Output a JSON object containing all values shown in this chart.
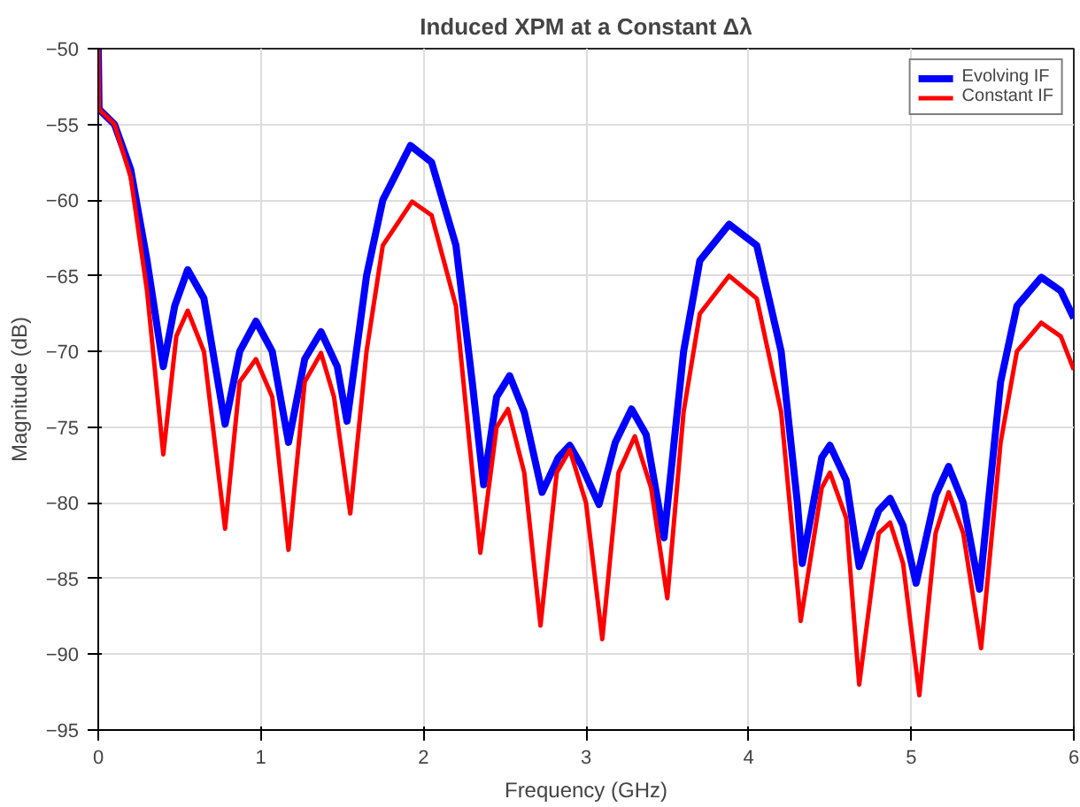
{
  "chart_data": {
    "type": "line",
    "title": "Induced XPM at a Constant Δλ",
    "xlabel": "Frequency (GHz)",
    "ylabel": "Magnitude (dB)",
    "xlim": [
      0,
      6
    ],
    "ylim": [
      -95,
      -50
    ],
    "xticks": [
      0,
      1,
      2,
      3,
      4,
      5,
      6
    ],
    "yticks": [
      -95,
      -90,
      -85,
      -80,
      -75,
      -70,
      -65,
      -60,
      -55,
      -50
    ],
    "grid": true,
    "legend": "top right",
    "line_style": "solid",
    "marker": "none",
    "series": [
      {
        "name": "Evolving IF",
        "color": "#0000ff",
        "x": [
          0,
          0.005,
          0.1,
          0.2,
          0.3,
          0.4,
          0.47,
          0.55,
          0.65,
          0.78,
          0.87,
          0.97,
          1.07,
          1.17,
          1.27,
          1.37,
          1.47,
          1.53,
          1.65,
          1.75,
          1.92,
          2.05,
          2.2,
          2.3,
          2.37,
          2.45,
          2.53,
          2.62,
          2.73,
          2.83,
          2.9,
          2.97,
          3.08,
          3.18,
          3.28,
          3.37,
          3.48,
          3.6,
          3.7,
          3.88,
          4.05,
          4.2,
          4.3,
          4.33,
          4.45,
          4.5,
          4.6,
          4.68,
          4.8,
          4.87,
          4.95,
          5.03,
          5.15,
          5.23,
          5.32,
          5.42,
          5.55,
          5.65,
          5.8,
          5.92,
          6
        ],
        "values": [
          -50,
          -54,
          -55,
          -58,
          -64,
          -71,
          -67,
          -64.6,
          -66.5,
          -74.8,
          -70,
          -68,
          -70,
          -76,
          -70.5,
          -68.7,
          -71,
          -74.6,
          -65,
          -60,
          -56.4,
          -57.5,
          -63,
          -72,
          -78.8,
          -73,
          -71.6,
          -74,
          -79.3,
          -77,
          -76.2,
          -77.5,
          -80.1,
          -76,
          -73.8,
          -75.5,
          -82.3,
          -70,
          -64,
          -61.6,
          -63,
          -70,
          -80,
          -84,
          -77,
          -76.2,
          -78.5,
          -84.2,
          -80.5,
          -79.7,
          -81.5,
          -85.3,
          -79.5,
          -77.6,
          -80,
          -85.7,
          -72,
          -67,
          -65.1,
          -66,
          -67.8
        ]
      },
      {
        "name": "Constant IF",
        "color": "#ff0000",
        "x": [
          0,
          0.005,
          0.1,
          0.2,
          0.3,
          0.4,
          0.48,
          0.55,
          0.65,
          0.78,
          0.87,
          0.97,
          1.07,
          1.17,
          1.27,
          1.37,
          1.45,
          1.55,
          1.65,
          1.75,
          1.93,
          2.05,
          2.2,
          2.35,
          2.45,
          2.52,
          2.62,
          2.72,
          2.82,
          2.9,
          3.0,
          3.1,
          3.2,
          3.3,
          3.4,
          3.5,
          3.6,
          3.7,
          3.88,
          4.05,
          4.2,
          4.32,
          4.45,
          4.5,
          4.6,
          4.68,
          4.8,
          4.87,
          4.95,
          5.05,
          5.15,
          5.23,
          5.32,
          5.43,
          5.55,
          5.65,
          5.8,
          5.92,
          6
        ],
        "values": [
          -50,
          -54,
          -55,
          -58.5,
          -66,
          -76.8,
          -69,
          -67.3,
          -70,
          -81.7,
          -72,
          -70.5,
          -73,
          -83.1,
          -72,
          -70.1,
          -73,
          -80.7,
          -70,
          -63,
          -60.1,
          -61,
          -67,
          -83.3,
          -75,
          -73.8,
          -78,
          -88.1,
          -78,
          -76.5,
          -80,
          -89,
          -78,
          -75.6,
          -79,
          -86.3,
          -74,
          -67.5,
          -65,
          -66.5,
          -74,
          -87.8,
          -79,
          -78,
          -81,
          -92,
          -82,
          -81.3,
          -84,
          -92.7,
          -82,
          -79.3,
          -82,
          -89.6,
          -76,
          -70,
          -68.1,
          -69,
          -71.2
        ]
      }
    ]
  }
}
